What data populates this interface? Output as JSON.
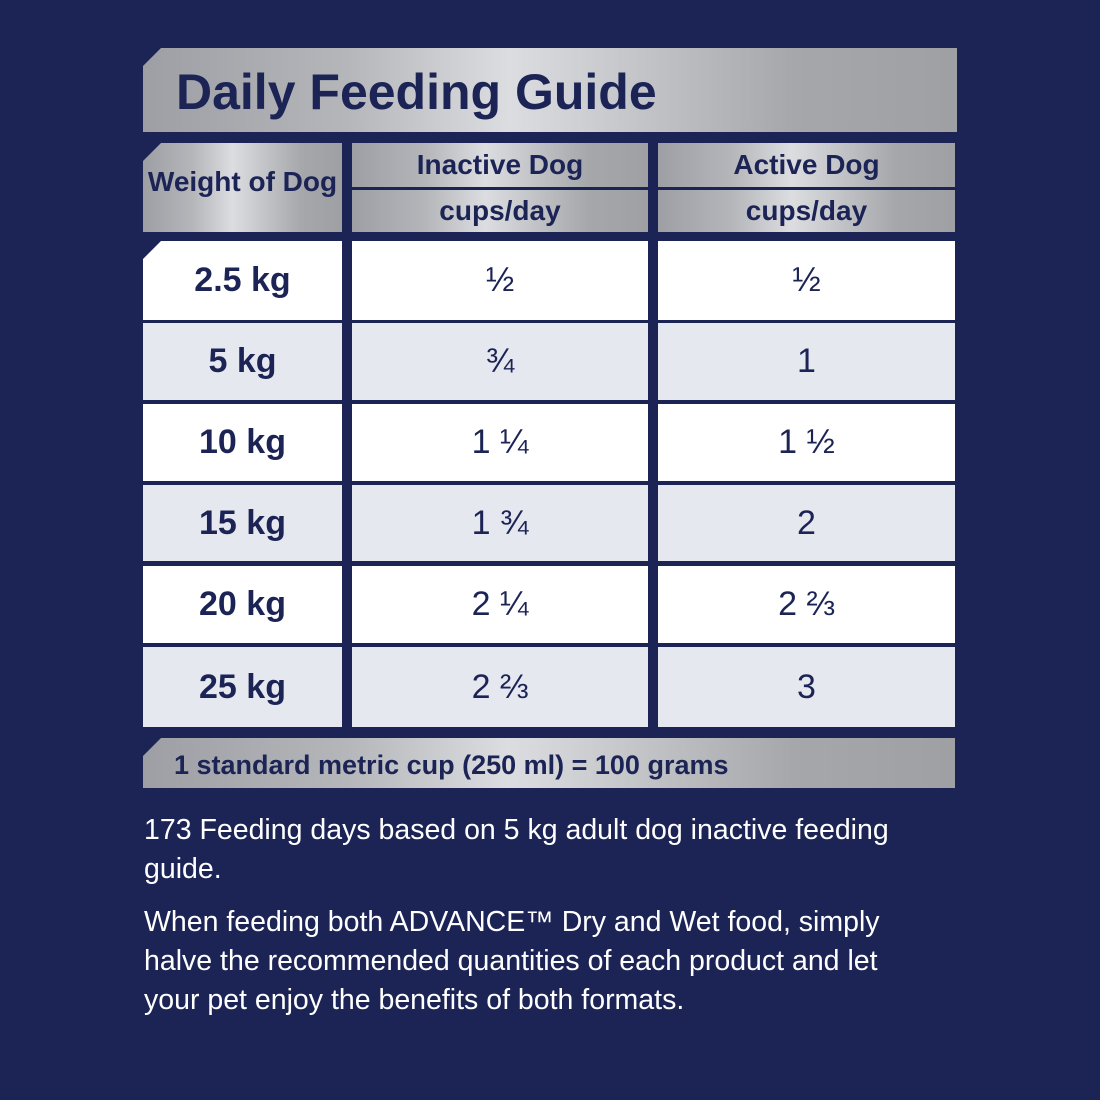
{
  "title": "Daily Feeding Guide",
  "header": {
    "weight": "Weight of Dog",
    "inactive": "Inactive Dog",
    "active": "Active Dog",
    "unit_inactive": "cups/day",
    "unit_active": "cups/day"
  },
  "rows": [
    {
      "weight": "2.5 kg",
      "inactive": "½",
      "active": "½"
    },
    {
      "weight": "5 kg",
      "inactive": "¾",
      "active": "1"
    },
    {
      "weight": "10 kg",
      "inactive": "1 ¼",
      "active": "1 ½"
    },
    {
      "weight": "15 kg",
      "inactive": "1 ¾",
      "active": "2"
    },
    {
      "weight": "20 kg",
      "inactive": "2 ¼",
      "active": "2 ⅔"
    },
    {
      "weight": "25 kg",
      "inactive": "2 ⅔",
      "active": "3"
    }
  ],
  "footnote": "1 standard metric cup (250 ml) = 100 grams",
  "paragraphs": [
    "173 Feeding days based on 5 kg adult dog inactive feeding guide.",
    "When feeding both ADVANCE™ Dry and Wet food, simply halve the recommended quantities of each product and let your pet enjoy the benefits of both formats."
  ],
  "colors": {
    "background": "#1c2456",
    "row_light": "#ffffff",
    "row_alt": "#e6e8ef",
    "text": "#1c2456"
  }
}
